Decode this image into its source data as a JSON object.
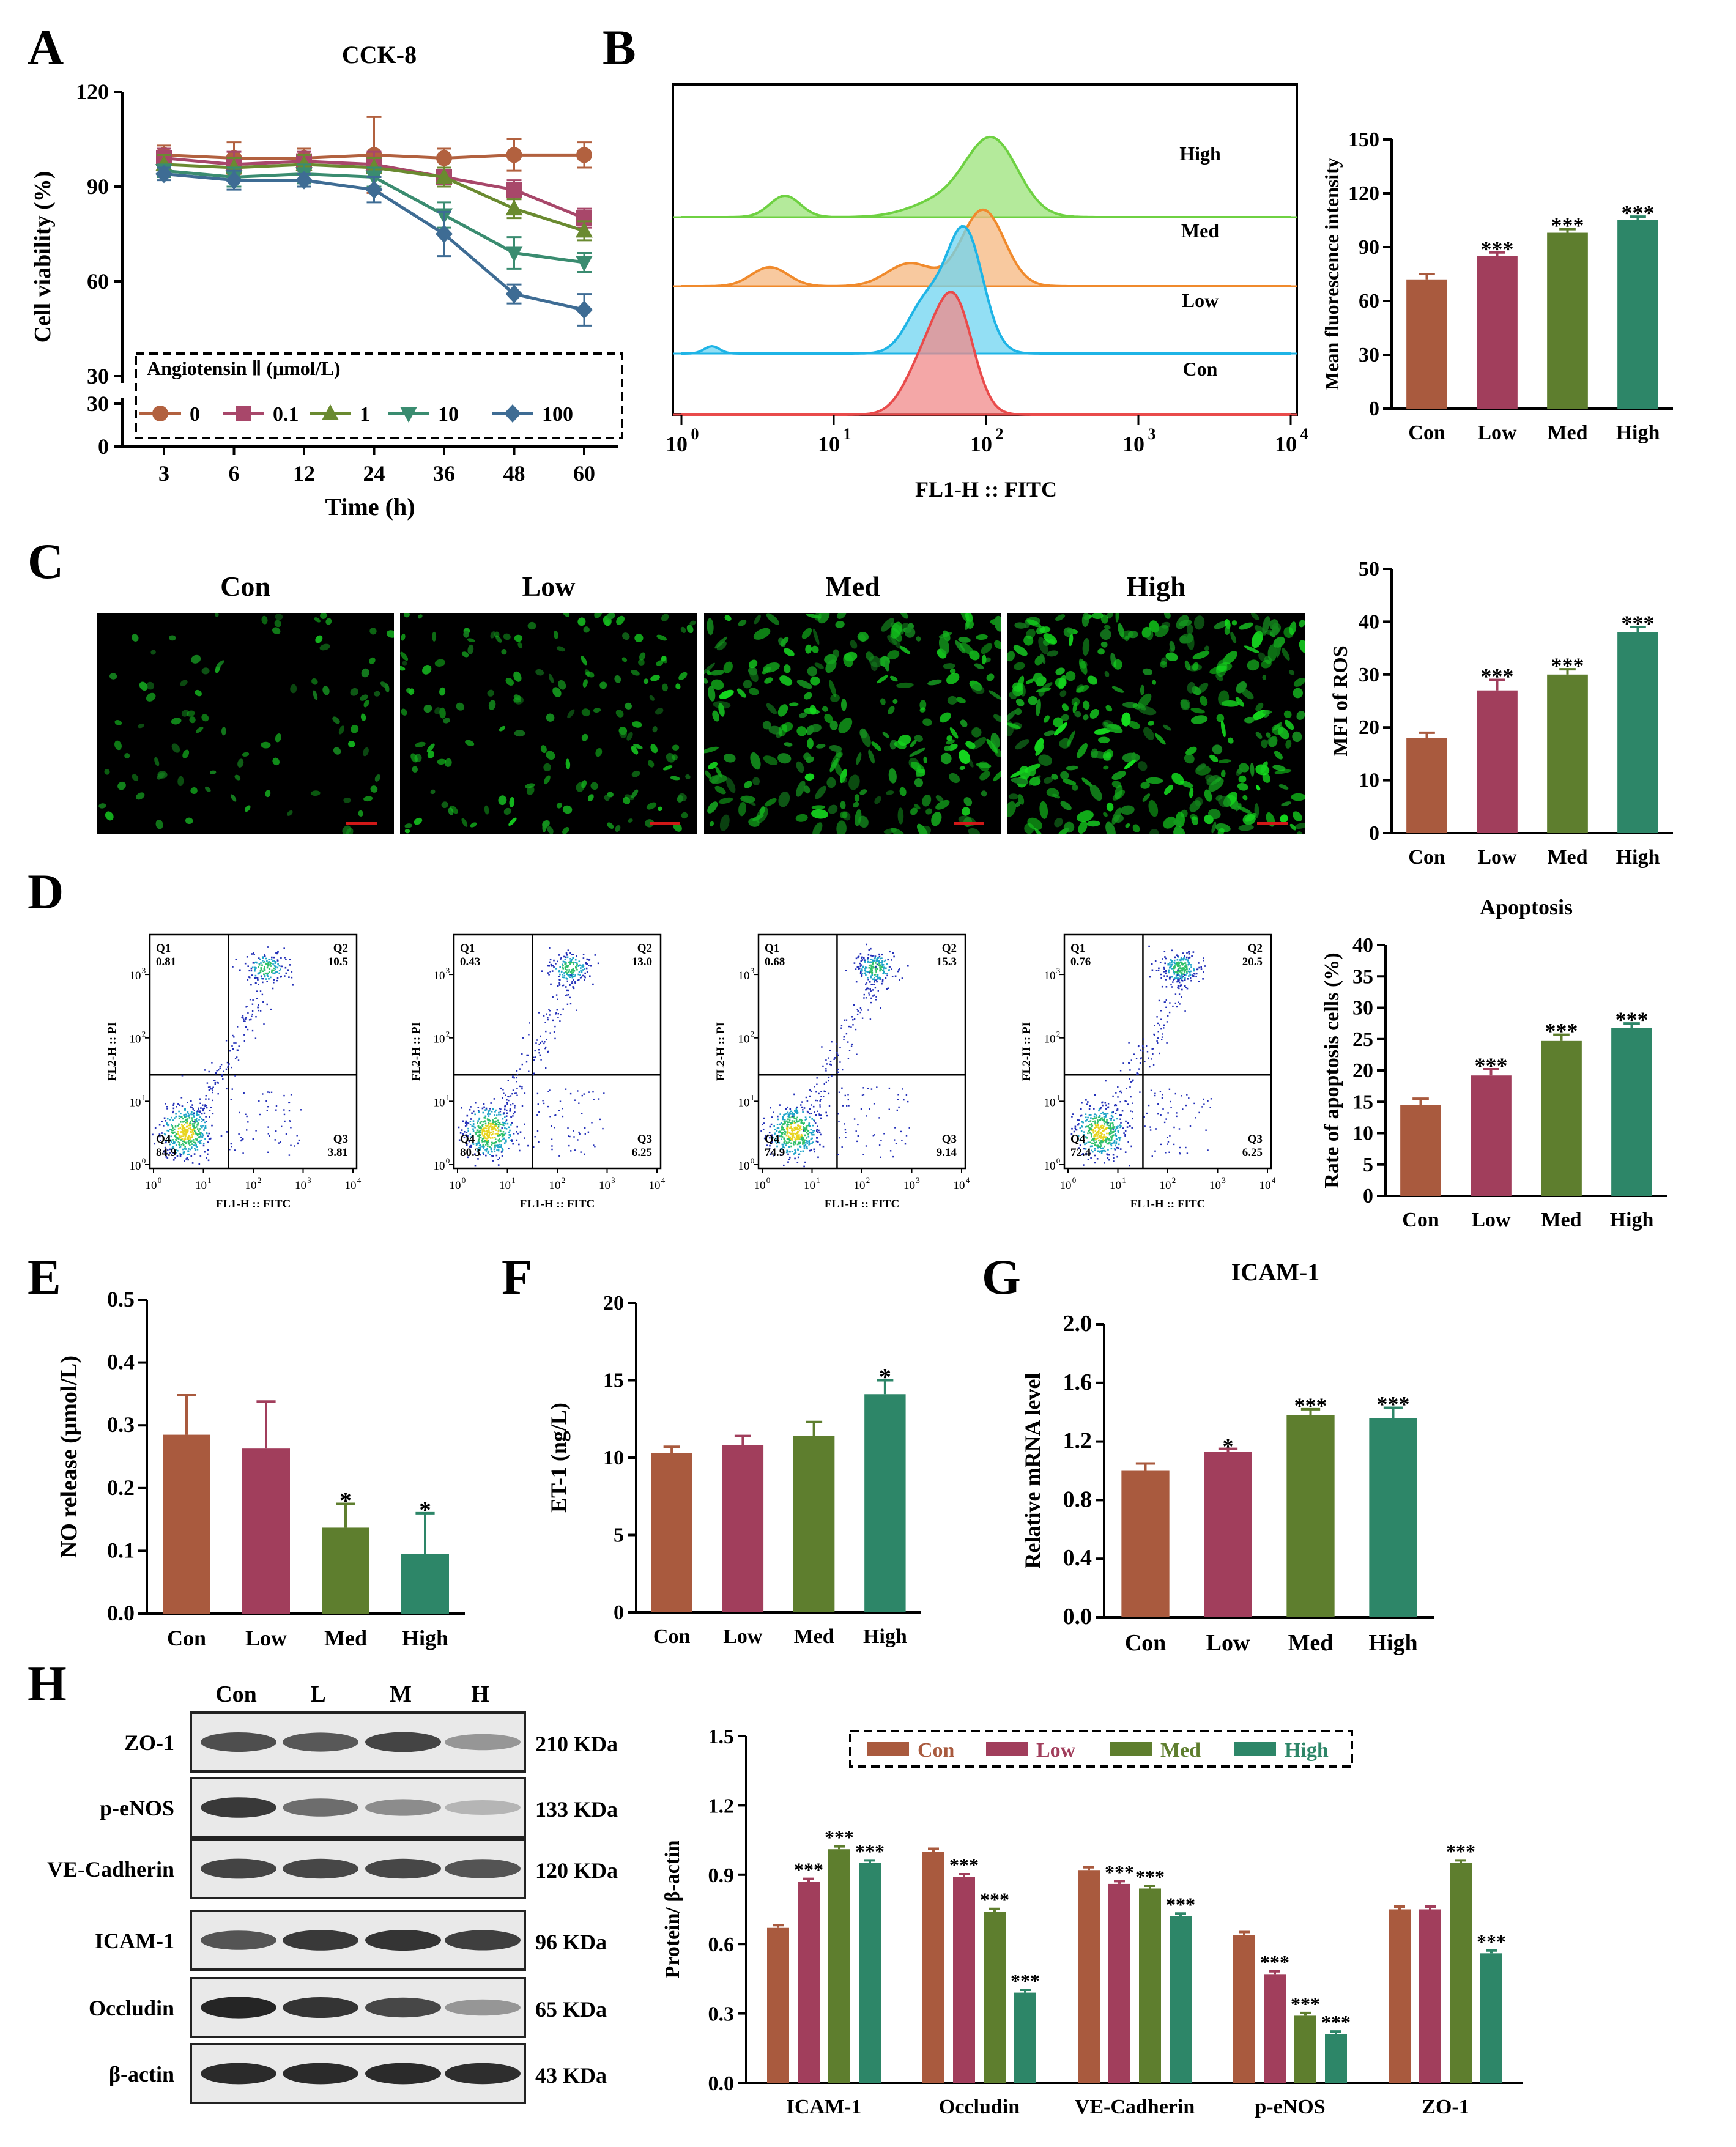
{
  "colors": {
    "con": "#A95A3E",
    "low": "#A13E5C",
    "med": "#5E7E2E",
    "high": "#2D8668",
    "line_0": "#B2613F",
    "line_01": "#A8476A",
    "line_1": "#6A8A30",
    "line_10": "#3A8C70",
    "line_100": "#3E6C94",
    "flow_high": "#9BE37A",
    "flow_med": "#F5B77F",
    "flow_low": "#6FD4F0",
    "flow_con": "#F08A8A"
  },
  "panel_letters": {
    "A": "A",
    "B": "B",
    "C": "C",
    "D": "D",
    "E": "E",
    "F": "F",
    "G": "G",
    "H": "H"
  },
  "panelA": {
    "chart_data": {
      "type": "line",
      "title": "CCK-8",
      "xlabel": "Time (h)",
      "ylabel": "Cell viability (%)",
      "categories": [
        "3",
        "6",
        "12",
        "24",
        "36",
        "48",
        "60"
      ],
      "y_ticks": [
        "0",
        "30",
        "30",
        "60",
        "90",
        "120"
      ],
      "legend_title": "Angiotensin Ⅱ (μmol/L)",
      "series": [
        {
          "name": "0",
          "values": [
            100,
            99,
            99,
            100,
            99,
            100,
            100
          ],
          "err": [
            3,
            5,
            3,
            12,
            3,
            5,
            4
          ]
        },
        {
          "name": "0.1",
          "values": [
            99,
            97,
            98,
            97,
            93,
            89,
            80
          ],
          "err": [
            3,
            4,
            3,
            4,
            3,
            3,
            3
          ]
        },
        {
          "name": "1",
          "values": [
            97,
            96,
            97,
            96,
            93,
            83,
            76
          ],
          "err": [
            3,
            3,
            3,
            3,
            3,
            3,
            3
          ]
        },
        {
          "name": "10",
          "values": [
            95,
            93,
            94,
            93,
            81,
            69,
            66
          ],
          "err": [
            2,
            3,
            3,
            3,
            4,
            5,
            3
          ]
        },
        {
          "name": "100",
          "values": [
            94,
            92,
            92,
            89,
            75,
            56,
            51
          ],
          "err": [
            2,
            3,
            2,
            4,
            7,
            3,
            5
          ]
        }
      ]
    }
  },
  "panelB": {
    "flow": {
      "xlabel": "FL1-H :: FITC",
      "x_ticks": [
        "10",
        "10",
        "10",
        "10",
        "10"
      ],
      "x_exps": [
        "0",
        "1",
        "2",
        "3",
        "4"
      ],
      "labels": [
        "High",
        "Med",
        "Low",
        "Con"
      ]
    },
    "chart_data": {
      "type": "bar",
      "categories": [
        "Con",
        "Low",
        "Med",
        "High"
      ],
      "values": [
        72,
        85,
        98,
        105
      ],
      "err": [
        3,
        2,
        2,
        2
      ],
      "sig": [
        "",
        "***",
        "***",
        "***"
      ],
      "ylabel": "Mean fluorescence intensity",
      "ylim": [
        0,
        150
      ],
      "y_ticks": [
        "0",
        "30",
        "60",
        "90",
        "120",
        "150"
      ]
    }
  },
  "panelC": {
    "images": [
      "Con",
      "Low",
      "Med",
      "High"
    ],
    "chart_data": {
      "type": "bar",
      "categories": [
        "Con",
        "Low",
        "Med",
        "High"
      ],
      "values": [
        18,
        27,
        30,
        38
      ],
      "err": [
        1,
        2,
        1,
        1
      ],
      "sig": [
        "",
        "***",
        "***",
        "***"
      ],
      "ylabel": "MFI of ROS",
      "ylim": [
        0,
        50
      ],
      "y_ticks": [
        "0",
        "10",
        "20",
        "30",
        "40",
        "50"
      ]
    }
  },
  "panelD": {
    "scatter": [
      {
        "q1": "0.81",
        "q2": "10.5",
        "q3": "3.81",
        "q4": "84.9"
      },
      {
        "q1": "0.43",
        "q2": "13.0",
        "q3": "6.25",
        "q4": "80.3"
      },
      {
        "q1": "0.68",
        "q2": "15.3",
        "q3": "9.14",
        "q4": "74.9"
      },
      {
        "q1": "0.76",
        "q2": "20.5",
        "q3": "6.25",
        "q4": "72.4"
      }
    ],
    "q_names": [
      "Q1",
      "Q2",
      "Q3",
      "Q4"
    ],
    "scatter_xlabel": "FL1-H :: FITC",
    "scatter_ylabel": "FL2-H :: PI",
    "chart_data": {
      "type": "bar",
      "title": "Apoptosis",
      "categories": [
        "Con",
        "Low",
        "Med",
        "High"
      ],
      "values": [
        14.5,
        19.2,
        24.7,
        26.8
      ],
      "err": [
        1,
        1,
        1,
        0.7
      ],
      "sig": [
        "",
        "***",
        "***",
        "***"
      ],
      "ylabel": "Rate of apoptosis cells (%)",
      "ylim": [
        0,
        40
      ],
      "y_ticks": [
        "0",
        "5",
        "10",
        "15",
        "20",
        "25",
        "30",
        "35",
        "40"
      ]
    }
  },
  "panelE": {
    "chart_data": {
      "type": "bar",
      "categories": [
        "Con",
        "Low",
        "Med",
        "High"
      ],
      "values": [
        0.285,
        0.263,
        0.137,
        0.095
      ],
      "err": [
        0.063,
        0.075,
        0.038,
        0.065
      ],
      "sig": [
        "",
        "",
        "*",
        "*"
      ],
      "ylabel": "NO release (μmol/L)",
      "ylim": [
        0,
        0.5
      ],
      "y_ticks": [
        "0.0",
        "0.1",
        "0.2",
        "0.3",
        "0.4",
        "0.5"
      ]
    }
  },
  "panelF": {
    "chart_data": {
      "type": "bar",
      "categories": [
        "Con",
        "Low",
        "Med",
        "High"
      ],
      "values": [
        10.3,
        10.8,
        11.4,
        14.1
      ],
      "err": [
        0.4,
        0.6,
        0.9,
        0.9
      ],
      "sig": [
        "",
        "",
        "",
        "*"
      ],
      "ylabel": "ET-1 (ng/L)",
      "ylim": [
        0,
        20
      ],
      "y_ticks": [
        "0",
        "5",
        "10",
        "15",
        "20"
      ]
    }
  },
  "panelG": {
    "chart_data": {
      "type": "bar",
      "title": "ICAM-1",
      "categories": [
        "Con",
        "Low",
        "Med",
        "High"
      ],
      "values": [
        1.0,
        1.13,
        1.38,
        1.36
      ],
      "err": [
        0.05,
        0.02,
        0.04,
        0.07
      ],
      "sig": [
        "",
        "*",
        "***",
        "***"
      ],
      "ylabel": "Relative mRNA level",
      "ylim": [
        0,
        2.0
      ],
      "y_ticks": [
        "0.0",
        "0.4",
        "0.8",
        "1.2",
        "1.6",
        "2.0"
      ]
    }
  },
  "panelH": {
    "blot": {
      "columns": [
        "Con",
        "L",
        "M",
        "H"
      ],
      "rows": [
        {
          "name": "ZO-1",
          "kda": "210 KDa"
        },
        {
          "name": "p-eNOS",
          "kda": "133 KDa"
        },
        {
          "name": "VE-Cadherin",
          "kda": "120 KDa"
        },
        {
          "name": "ICAM-1",
          "kda": "96 KDa"
        },
        {
          "name": "Occludin",
          "kda": "65 KDa"
        },
        {
          "name": "β-actin",
          "kda": "43 KDa"
        }
      ]
    },
    "chart_data": {
      "type": "bar",
      "categories": [
        "ICAM-1",
        "Occludin",
        "VE-Cadherin",
        "p-eNOS",
        "ZO-1"
      ],
      "legend": [
        "Con",
        "Low",
        "Med",
        "High"
      ],
      "series": [
        {
          "name": "Con",
          "values": [
            0.67,
            1.0,
            0.92,
            0.64,
            0.75
          ],
          "sig": [
            "",
            "",
            "",
            "",
            ""
          ]
        },
        {
          "name": "Low",
          "values": [
            0.87,
            0.89,
            0.86,
            0.47,
            0.75
          ],
          "sig": [
            "***",
            "***",
            "***",
            "***",
            ""
          ]
        },
        {
          "name": "Med",
          "values": [
            1.01,
            0.74,
            0.84,
            0.29,
            0.95
          ],
          "sig": [
            "***",
            "***",
            "***",
            "***",
            "***"
          ]
        },
        {
          "name": "High",
          "values": [
            0.95,
            0.39,
            0.72,
            0.21,
            0.56
          ],
          "sig": [
            "***",
            "***",
            "***",
            "***",
            "***"
          ]
        }
      ],
      "ylabel": "Protein/ β-actin",
      "ylim": [
        0,
        1.5
      ],
      "y_ticks": [
        "0.0",
        "0.3",
        "0.6",
        "0.9",
        "1.2",
        "1.5"
      ]
    }
  }
}
